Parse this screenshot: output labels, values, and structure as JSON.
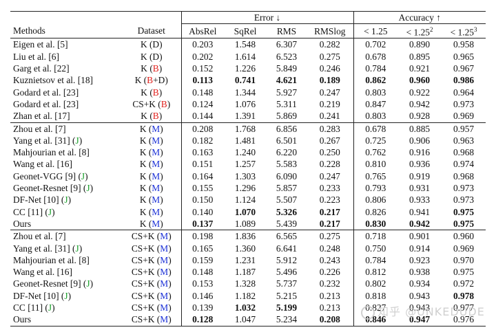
{
  "header": {
    "group1": {
      "methods": "Methods",
      "dataset": "Dataset"
    },
    "error_group": "Error ↓",
    "accuracy_group": "Accuracy ↑",
    "columns": [
      "AbsRel",
      "SqRel",
      "RMS",
      "RMSlog",
      "< 1.25",
      "< 1.25",
      "< 1.25"
    ],
    "sup": [
      "",
      "",
      "",
      "",
      "",
      "2",
      "3"
    ]
  },
  "sections": [
    {
      "rows": [
        {
          "method": "Eigen et al. [5]",
          "j": false,
          "dpre": "K (",
          "dtag": "D",
          "dcolor": "plain",
          "dpost": ")",
          "vals": [
            "0.203",
            "1.548",
            "6.307",
            "0.282",
            "0.702",
            "0.890",
            "0.958"
          ],
          "bold": []
        },
        {
          "method": "Liu et al. [6]",
          "j": false,
          "dpre": "K (",
          "dtag": "D",
          "dcolor": "plain",
          "dpost": ")",
          "vals": [
            "0.202",
            "1.614",
            "6.523",
            "0.275",
            "0.678",
            "0.895",
            "0.965"
          ],
          "bold": []
        },
        {
          "method": "Garg et al. [22]",
          "j": false,
          "dpre": "K (",
          "dtag": "B",
          "dcolor": "red",
          "dpost": ")",
          "vals": [
            "0.152",
            "1.226",
            "5.849",
            "0.246",
            "0.784",
            "0.921",
            "0.967"
          ],
          "bold": []
        },
        {
          "method": "Kuznietsov et al. [18]",
          "j": false,
          "dpre": "K (",
          "dtag": "B",
          "dcolor": "red",
          "dpost": "+D)",
          "vals": [
            "0.113",
            "0.741",
            "4.621",
            "0.189",
            "0.862",
            "0.960",
            "0.986"
          ],
          "bold": [
            0,
            1,
            2,
            3,
            4,
            5,
            6
          ]
        },
        {
          "method": "Godard et al. [23]",
          "j": false,
          "dpre": "K (",
          "dtag": "B",
          "dcolor": "red",
          "dpost": ")",
          "vals": [
            "0.148",
            "1.344",
            "5.927",
            "0.247",
            "0.803",
            "0.922",
            "0.964"
          ],
          "bold": []
        },
        {
          "method": "Godard et al. [23]",
          "j": false,
          "dpre": "CS+K (",
          "dtag": "B",
          "dcolor": "red",
          "dpost": ")",
          "vals": [
            "0.124",
            "1.076",
            "5.311",
            "0.219",
            "0.847",
            "0.942",
            "0.973"
          ],
          "bold": []
        },
        {
          "method": "Zhan et al. [17]",
          "j": false,
          "dpre": "K (",
          "dtag": "B",
          "dcolor": "red",
          "dpost": ")",
          "vals": [
            "0.144",
            "1.391",
            "5.869",
            "0.241",
            "0.803",
            "0.928",
            "0.969"
          ],
          "bold": []
        }
      ]
    },
    {
      "rows": [
        {
          "method": "Zhou et al. [7]",
          "j": false,
          "dpre": "K (",
          "dtag": "M",
          "dcolor": "blue",
          "dpost": ")",
          "vals": [
            "0.208",
            "1.768",
            "6.856",
            "0.283",
            "0.678",
            "0.885",
            "0.957"
          ],
          "bold": []
        },
        {
          "method": "Yang et al. [31] (",
          "j": true,
          "dpre": "K (",
          "dtag": "M",
          "dcolor": "blue",
          "dpost": ")",
          "vals": [
            "0.182",
            "1.481",
            "6.501",
            "0.267",
            "0.725",
            "0.906",
            "0.963"
          ],
          "bold": []
        },
        {
          "method": "Mahjourian et al. [8]",
          "j": false,
          "dpre": "K (",
          "dtag": "M",
          "dcolor": "blue",
          "dpost": ")",
          "vals": [
            "0.163",
            "1.240",
            "6.220",
            "0.250",
            "0.762",
            "0.916",
            "0.968"
          ],
          "bold": []
        },
        {
          "method": "Wang et al. [16]",
          "j": false,
          "dpre": "K (",
          "dtag": "M",
          "dcolor": "blue",
          "dpost": ")",
          "vals": [
            "0.151",
            "1.257",
            "5.583",
            "0.228",
            "0.810",
            "0.936",
            "0.974"
          ],
          "bold": []
        },
        {
          "method": "Geonet-VGG [9] (",
          "j": true,
          "dpre": "K (",
          "dtag": "M",
          "dcolor": "blue",
          "dpost": ")",
          "vals": [
            "0.164",
            "1.303",
            "6.090",
            "0.247",
            "0.765",
            "0.919",
            "0.968"
          ],
          "bold": []
        },
        {
          "method": "Geonet-Resnet [9] (",
          "j": true,
          "dpre": "K (",
          "dtag": "M",
          "dcolor": "blue",
          "dpost": ")",
          "vals": [
            "0.155",
            "1.296",
            "5.857",
            "0.233",
            "0.793",
            "0.931",
            "0.973"
          ],
          "bold": []
        },
        {
          "method": "DF-Net [10] (",
          "j": true,
          "dpre": "K (",
          "dtag": "M",
          "dcolor": "blue",
          "dpost": ")",
          "vals": [
            "0.150",
            "1.124",
            "5.507",
            "0.223",
            "0.806",
            "0.933",
            "0.973"
          ],
          "bold": []
        },
        {
          "method": "CC [11] (",
          "j": true,
          "dpre": "K (",
          "dtag": "M",
          "dcolor": "blue",
          "dpost": ")",
          "vals": [
            "0.140",
            "1.070",
            "5.326",
            "0.217",
            "0.826",
            "0.941",
            "0.975"
          ],
          "bold": [
            1,
            2,
            3,
            6
          ]
        },
        {
          "method": "Ours",
          "j": false,
          "dpre": "K (",
          "dtag": "M",
          "dcolor": "blue",
          "dpost": ")",
          "vals": [
            "0.137",
            "1.089",
            "5.439",
            "0.217",
            "0.830",
            "0.942",
            "0.975"
          ],
          "bold": [
            0,
            3,
            4,
            5,
            6
          ]
        }
      ]
    },
    {
      "rows": [
        {
          "method": "Zhou et al. [7]",
          "j": false,
          "dpre": "CS+K (",
          "dtag": "M",
          "dcolor": "blue",
          "dpost": ")",
          "vals": [
            "0.198",
            "1.836",
            "6.565",
            "0.275",
            "0.718",
            "0.901",
            "0.960"
          ],
          "bold": []
        },
        {
          "method": "Yang et al. [31] (",
          "j": true,
          "dpre": "CS+K (",
          "dtag": "M",
          "dcolor": "blue",
          "dpost": ")",
          "vals": [
            "0.165",
            "1.360",
            "6.641",
            "0.248",
            "0.750",
            "0.914",
            "0.969"
          ],
          "bold": []
        },
        {
          "method": "Mahjourian et al. [8]",
          "j": false,
          "dpre": "CS+K (",
          "dtag": "M",
          "dcolor": "blue",
          "dpost": ")",
          "vals": [
            "0.159",
            "1.231",
            "5.912",
            "0.243",
            "0.784",
            "0.923",
            "0.970"
          ],
          "bold": []
        },
        {
          "method": "Wang et al. [16]",
          "j": false,
          "dpre": "CS+K (",
          "dtag": "M",
          "dcolor": "blue",
          "dpost": ")",
          "vals": [
            "0.148",
            "1.187",
            "5.496",
            "0.226",
            "0.812",
            "0.938",
            "0.975"
          ],
          "bold": []
        },
        {
          "method": "Geonet-Resnet [9] (",
          "j": true,
          "dpre": "CS+K (",
          "dtag": "M",
          "dcolor": "blue",
          "dpost": ")",
          "vals": [
            "0.153",
            "1.328",
            "5.737",
            "0.232",
            "0.802",
            "0.934",
            "0.972"
          ],
          "bold": []
        },
        {
          "method": "DF-Net [10] (",
          "j": true,
          "dpre": "CS+K (",
          "dtag": "M",
          "dcolor": "blue",
          "dpost": ")",
          "vals": [
            "0.146",
            "1.182",
            "5.215",
            "0.213",
            "0.818",
            "0.943",
            "0.978"
          ],
          "bold": [
            6
          ]
        },
        {
          "method": "CC [11] (",
          "j": true,
          "dpre": "CS+K (",
          "dtag": "M",
          "dcolor": "blue",
          "dpost": ")",
          "vals": [
            "0.139",
            "1.032",
            "5.199",
            "0.213",
            "0.827",
            "0.943",
            "0.977"
          ],
          "bold": [
            1,
            2
          ]
        },
        {
          "method": "Ours",
          "j": false,
          "dpre": "CS+K (",
          "dtag": "M",
          "dcolor": "blue",
          "dpost": ")",
          "vals": [
            "0.128",
            "1.047",
            "5.234",
            "0.208",
            "0.846",
            "0.947",
            "0.976"
          ],
          "bold": [
            0,
            3,
            4,
            5
          ]
        }
      ]
    }
  ],
  "j_mark": "J",
  "j_close": ")",
  "watermark": "知乎 @UNKEDUDE",
  "colors": {
    "red": "#e0211d",
    "blue": "#1a2fd6",
    "green": "#19a02a",
    "rule": "#222222"
  }
}
